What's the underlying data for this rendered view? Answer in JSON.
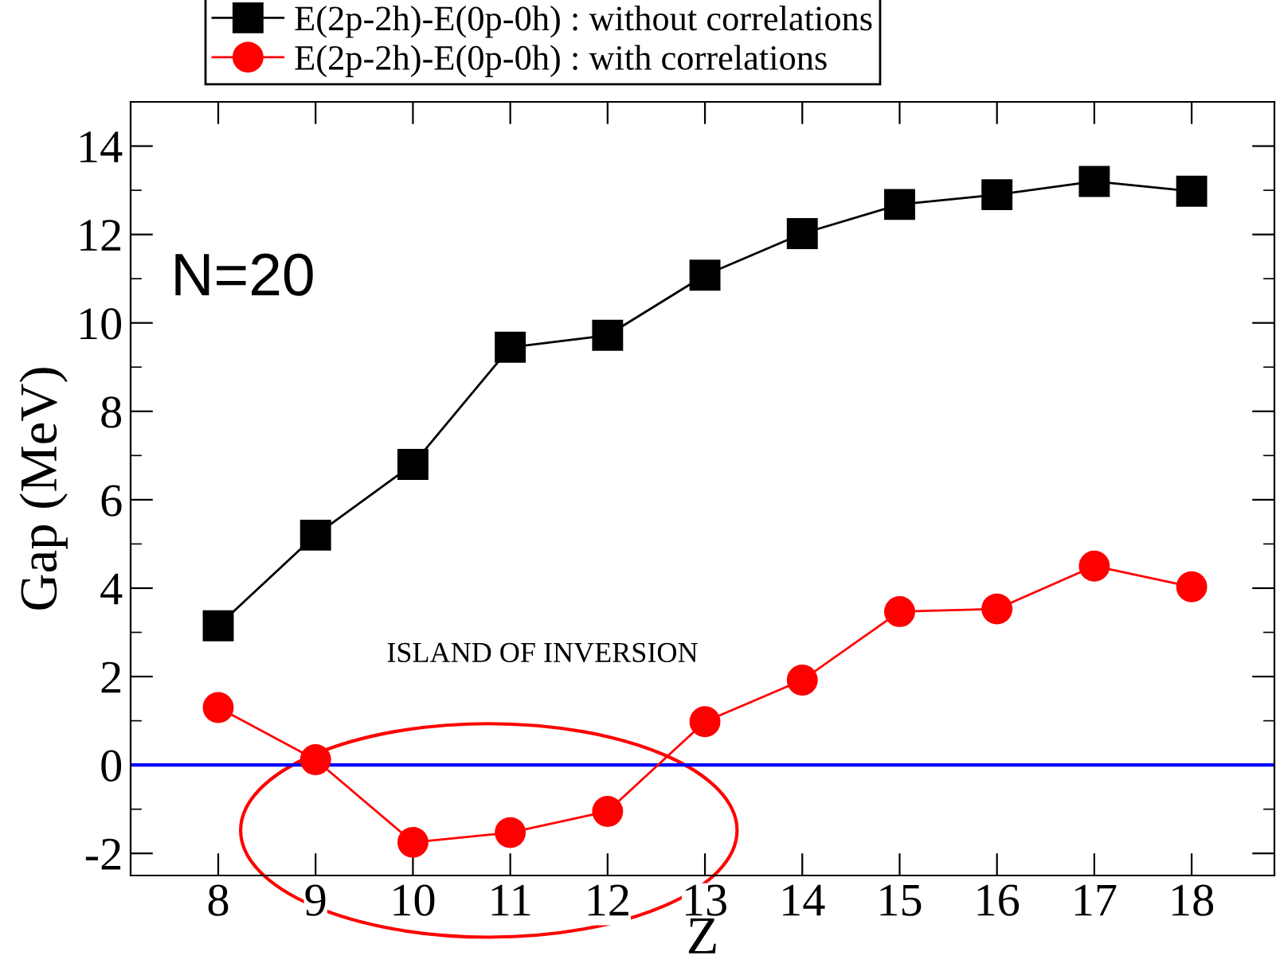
{
  "chart_data": {
    "type": "line",
    "xlabel": "Z",
    "ylabel": "Gap (MeV)",
    "x": [
      8,
      9,
      10,
      11,
      12,
      13,
      14,
      15,
      16,
      17,
      18
    ],
    "series": [
      {
        "name": "E(2p-2h)-E(0p-0h) : without correlations",
        "color": "#000000",
        "marker": "square",
        "values": [
          3.15,
          5.2,
          6.8,
          9.45,
          9.72,
          11.08,
          12.02,
          12.68,
          12.9,
          13.2,
          12.98
        ]
      },
      {
        "name": "E(2p-2h)-E(0p-0h) : with correlations",
        "color": "#ff0000",
        "marker": "circle",
        "values": [
          1.3,
          0.12,
          -1.75,
          -1.53,
          -1.05,
          0.98,
          1.92,
          3.47,
          3.53,
          4.5,
          4.03
        ]
      }
    ],
    "xlim": [
      7.1,
      18.85
    ],
    "xticks": [
      8,
      9,
      10,
      11,
      12,
      13,
      14,
      15,
      16,
      17,
      18
    ],
    "ylim": [
      -2.5,
      15
    ],
    "yticks": [
      -2,
      0,
      2,
      4,
      6,
      8,
      10,
      12,
      14
    ],
    "ref_lines": [
      {
        "axis": "y",
        "value": 0,
        "color": "#0000ff"
      }
    ],
    "annotations": [
      "N=20",
      "ISLAND OF INVERSION"
    ],
    "legend": "top",
    "grid": false,
    "line_style": "solid"
  }
}
